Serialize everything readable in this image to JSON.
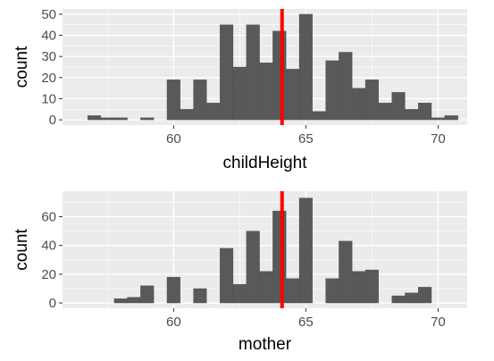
{
  "chart_data": [
    {
      "type": "histogram",
      "xlabel": "childHeight",
      "ylabel": "count",
      "xlim": [
        55.8,
        71.1
      ],
      "ylim": [
        -2.5,
        52.5
      ],
      "xticks": [
        60,
        65,
        70
      ],
      "yticks": [
        0,
        10,
        20,
        30,
        40,
        50
      ],
      "grid": true,
      "bin_width": 0.5,
      "bins": [
        {
          "x": 57.0,
          "count": 2
        },
        {
          "x": 57.5,
          "count": 1
        },
        {
          "x": 58.0,
          "count": 1
        },
        {
          "x": 58.5,
          "count": 0
        },
        {
          "x": 59.0,
          "count": 1
        },
        {
          "x": 59.5,
          "count": 0
        },
        {
          "x": 60.0,
          "count": 19
        },
        {
          "x": 60.5,
          "count": 5
        },
        {
          "x": 61.0,
          "count": 19
        },
        {
          "x": 61.5,
          "count": 8
        },
        {
          "x": 62.0,
          "count": 45
        },
        {
          "x": 62.5,
          "count": 25
        },
        {
          "x": 63.0,
          "count": 45
        },
        {
          "x": 63.5,
          "count": 27
        },
        {
          "x": 64.0,
          "count": 42
        },
        {
          "x": 64.5,
          "count": 24
        },
        {
          "x": 65.0,
          "count": 50
        },
        {
          "x": 65.5,
          "count": 4
        },
        {
          "x": 66.0,
          "count": 28
        },
        {
          "x": 66.5,
          "count": 32
        },
        {
          "x": 67.0,
          "count": 15
        },
        {
          "x": 67.5,
          "count": 19
        },
        {
          "x": 68.0,
          "count": 8
        },
        {
          "x": 68.5,
          "count": 13
        },
        {
          "x": 69.0,
          "count": 5
        },
        {
          "x": 69.5,
          "count": 8
        },
        {
          "x": 70.0,
          "count": 1
        },
        {
          "x": 70.5,
          "count": 2
        }
      ],
      "mean_line": {
        "x": 64.1,
        "color": "#ff0000"
      },
      "bar_color": "#595959",
      "panel_color": "#ebebeb"
    },
    {
      "type": "histogram",
      "xlabel": "mother",
      "ylabel": "count",
      "xlim": [
        55.8,
        71.1
      ],
      "ylim": [
        -3.7,
        77.7
      ],
      "xticks": [
        60,
        65,
        70
      ],
      "yticks": [
        0,
        20,
        40,
        60
      ],
      "grid": true,
      "bin_width": 0.5,
      "bins": [
        {
          "x": 58.0,
          "count": 3
        },
        {
          "x": 58.5,
          "count": 4
        },
        {
          "x": 59.0,
          "count": 12
        },
        {
          "x": 59.5,
          "count": 0
        },
        {
          "x": 60.0,
          "count": 18
        },
        {
          "x": 60.5,
          "count": 0
        },
        {
          "x": 61.0,
          "count": 10
        },
        {
          "x": 61.5,
          "count": 0
        },
        {
          "x": 62.0,
          "count": 38
        },
        {
          "x": 62.5,
          "count": 13
        },
        {
          "x": 63.0,
          "count": 50
        },
        {
          "x": 63.5,
          "count": 22
        },
        {
          "x": 64.0,
          "count": 64
        },
        {
          "x": 64.5,
          "count": 17
        },
        {
          "x": 65.0,
          "count": 73
        },
        {
          "x": 65.5,
          "count": 0
        },
        {
          "x": 66.0,
          "count": 17
        },
        {
          "x": 66.5,
          "count": 43
        },
        {
          "x": 67.0,
          "count": 22
        },
        {
          "x": 67.5,
          "count": 23
        },
        {
          "x": 68.0,
          "count": 0
        },
        {
          "x": 68.5,
          "count": 5
        },
        {
          "x": 69.0,
          "count": 7
        },
        {
          "x": 69.5,
          "count": 11
        }
      ],
      "mean_line": {
        "x": 64.1,
        "color": "#ff0000"
      },
      "bar_color": "#595959",
      "panel_color": "#ebebeb"
    }
  ]
}
